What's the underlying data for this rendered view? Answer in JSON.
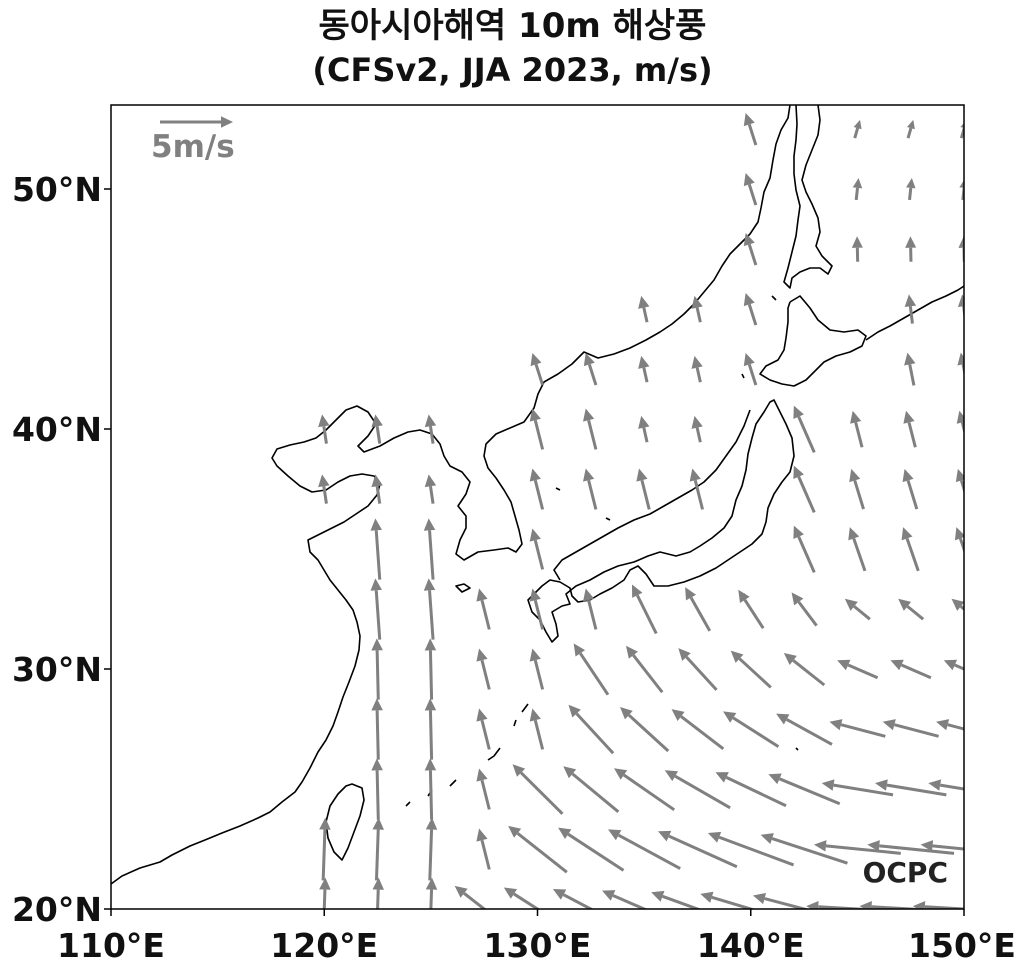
{
  "chart_data": {
    "type": "vector-field",
    "title": "동아시아해역 10m 해상풍",
    "subtitle": "(CFSv2, JJA 2023, m/s)",
    "xlim": [
      110,
      150
    ],
    "ylim": [
      20,
      53.5
    ],
    "x_ticks": [
      110,
      120,
      130,
      140,
      150
    ],
    "x_tick_labels": [
      "110°E",
      "120°E",
      "130°E",
      "140°E",
      "150°E"
    ],
    "y_ticks": [
      20,
      30,
      40,
      50
    ],
    "y_tick_labels": [
      "20°N",
      "30°N",
      "40°N",
      "50°N"
    ],
    "reference_vector": {
      "magnitude": 5,
      "label": "5m/s"
    },
    "watermark": "OCPC",
    "grid": false,
    "vector_color": "#808080",
    "coastline_color": "#000000",
    "grid_spacing_deg": 2.5,
    "grid_lon_start": 112.5,
    "grid_lat_start": 20,
    "wind_field_description": "Southerly/southwesterly monsoon flow along China coast and Yellow Sea; easterly trades in southeast (Pacific subtropical high) turning to southerly east of Japan."
  }
}
